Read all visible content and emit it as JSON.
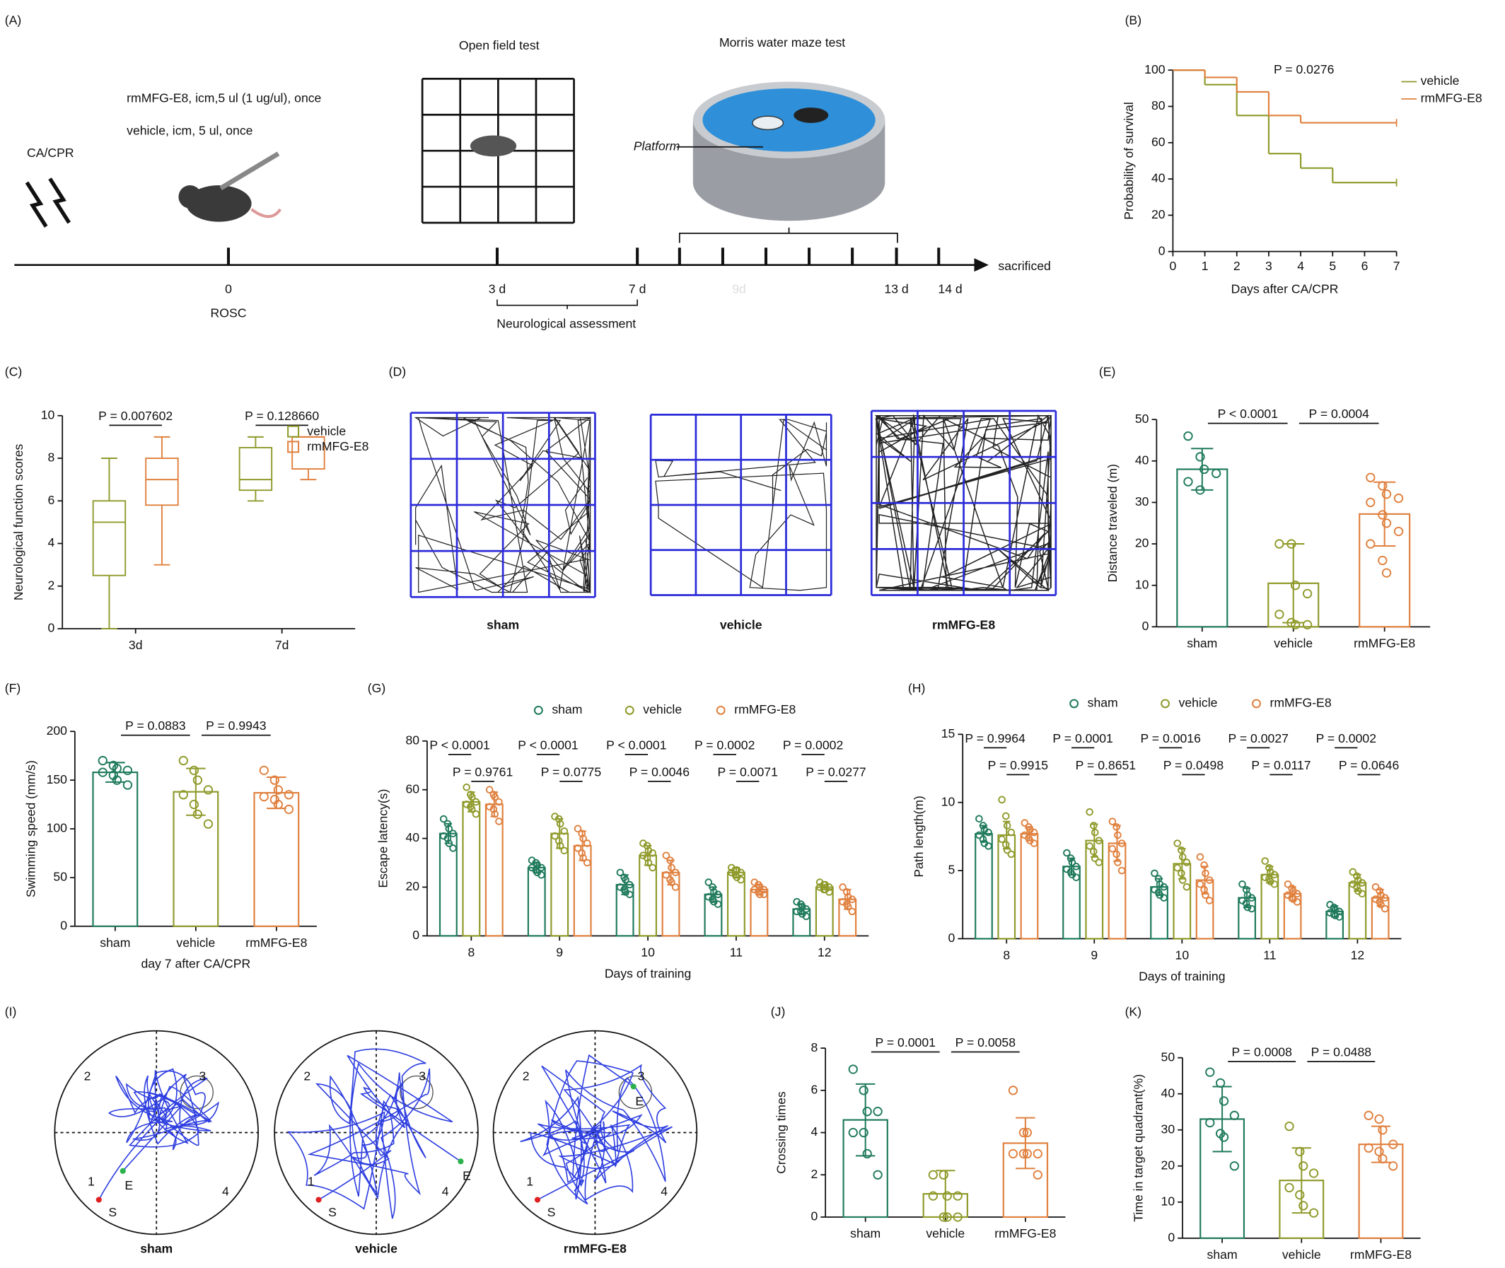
{
  "panel_labels": [
    "(A)",
    "(B)",
    "(C)",
    "(D)",
    "(E)",
    "(F)",
    "(G)",
    "(H)",
    "(I)",
    "(J)",
    "(K)"
  ],
  "schematic": {
    "event": "CA/CPR",
    "treatment": "rmMFG-E8, icm,5 ul (1 ug/ul), once",
    "control": "vehicle, icm, 5 ul, once",
    "open_field": "Open field test",
    "water_maze": "Morris water maze test",
    "platform": "Platform",
    "timeline": {
      "ticks": [
        "0",
        "3 d",
        "7 d",
        "9d",
        "13 d",
        "14 d"
      ],
      "end": "sacrificed",
      "start_note": "ROSC",
      "assessment": "Neurological assessment"
    }
  },
  "open_field_tracks": {
    "labels": [
      "sham",
      "vehicle",
      "rmMFG-E8"
    ]
  },
  "water_maze_tracks": {
    "labels": [
      "sham",
      "vehicle",
      "rmMFG-E8"
    ],
    "quadrants": [
      "1",
      "2",
      "3",
      "4"
    ],
    "start": "S",
    "end": "E"
  },
  "chart_data": [
    {
      "type": "line",
      "step": true,
      "xlabel": "Days after CA/CPR",
      "ylabel": "Probability of survival",
      "annotation": "P = 0.0276",
      "x": [
        0,
        1,
        2,
        3,
        4,
        5,
        6,
        7
      ],
      "xlim": [
        0,
        7
      ],
      "xticks": [
        0,
        1,
        2,
        3,
        4,
        5,
        6,
        7
      ],
      "ylim": [
        0,
        100
      ],
      "yticks": [
        0,
        20,
        40,
        60,
        80,
        100
      ],
      "legend": "right",
      "series": [
        {
          "name": "vehicle",
          "color": "#8f9a2a",
          "values": [
            100,
            92,
            75,
            54,
            46,
            38,
            38,
            38
          ]
        },
        {
          "name": "rmMFG-E8",
          "color": "#e0803e",
          "values": [
            100,
            96,
            88,
            75,
            71,
            71,
            71,
            71
          ]
        }
      ]
    },
    {
      "type": "box",
      "ylabel": "Neurological function scores",
      "categories": [
        "3d",
        "7d"
      ],
      "ylim": [
        0,
        10
      ],
      "yticks": [
        0,
        2,
        4,
        6,
        8,
        10
      ],
      "legend": "top-right",
      "comparisons": [
        "P = 0.007602",
        "P = 0.128660"
      ],
      "series": [
        {
          "name": "vehicle",
          "color": "#8f9a2a",
          "min": [
            0,
            6
          ],
          "q1": [
            2.5,
            6.5
          ],
          "median": [
            5,
            7
          ],
          "q3": [
            6,
            8.5
          ],
          "max": [
            8,
            9
          ]
        },
        {
          "name": "rmMFG-E8",
          "color": "#e0803e",
          "min": [
            3,
            7
          ],
          "q1": [
            5.8,
            7.5
          ],
          "median": [
            7,
            9
          ],
          "q3": [
            8,
            9
          ],
          "max": [
            9,
            9
          ]
        }
      ]
    },
    {
      "type": "bar",
      "ylabel": "Distance traveled (m)",
      "categories": [
        "sham",
        "vehicle",
        "rmMFG-E8"
      ],
      "colors": [
        "#1f7a5c",
        "#8f9a2a",
        "#e0803e"
      ],
      "ylim": [
        0,
        50
      ],
      "yticks": [
        0,
        10,
        20,
        30,
        40,
        50
      ],
      "values": [
        38,
        10.5,
        27.2
      ],
      "errors": [
        5,
        9.5,
        7.7
      ],
      "points": [
        [
          46,
          41,
          38,
          37,
          35,
          33
        ],
        [
          20,
          20,
          10,
          8,
          3,
          1,
          0.5,
          0.5
        ],
        [
          36,
          34,
          32,
          31,
          30,
          27,
          25,
          23,
          20,
          16,
          13
        ]
      ],
      "comparisons": [
        "P < 0.0001",
        "P = 0.0004"
      ]
    },
    {
      "type": "bar",
      "ylabel": "Swimming speed (mm/s)",
      "xlabel": "day 7 after CA/CPR",
      "categories": [
        "sham",
        "vehicle",
        "rmMFG-E8"
      ],
      "colors": [
        "#1f7a5c",
        "#8f9a2a",
        "#e0803e"
      ],
      "ylim": [
        0,
        200
      ],
      "yticks": [
        0,
        50,
        100,
        150,
        200
      ],
      "values": [
        158,
        138,
        137
      ],
      "errors": [
        10,
        24,
        16
      ],
      "points": [
        [
          170,
          165,
          162,
          160,
          158,
          155,
          150,
          145
        ],
        [
          170,
          160,
          150,
          140,
          135,
          125,
          115,
          105
        ],
        [
          160,
          150,
          140,
          135,
          133,
          130,
          125,
          120
        ]
      ],
      "comparisons": [
        "P = 0.0883",
        "P = 0.9943"
      ]
    },
    {
      "type": "bar",
      "ylabel": "Escape latency(s)",
      "xlabel": "Days of training",
      "categories": [
        "8",
        "9",
        "10",
        "11",
        "12"
      ],
      "ylim": [
        0,
        80
      ],
      "yticks": [
        0,
        20,
        40,
        60,
        80
      ],
      "legend": "top",
      "comparisons": [
        [
          "P < 0.0001",
          "P = 0.9761"
        ],
        [
          "P < 0.0001",
          "P = 0.0775"
        ],
        [
          "P < 0.0001",
          "P = 0.0046"
        ],
        [
          "P = 0.0002",
          "P = 0.0071"
        ],
        [
          "P = 0.0002",
          "P = 0.0277"
        ]
      ],
      "series": [
        {
          "name": "sham",
          "color": "#1f7a5c",
          "values": [
            42,
            28,
            21,
            17,
            11
          ],
          "errors": [
            4,
            2,
            4,
            3,
            2
          ],
          "points": [
            [
              48,
              46,
              44,
              42,
              41,
              40,
              38,
              36
            ],
            [
              31,
              30,
              29,
              28,
              28,
              27,
              26,
              25
            ],
            [
              26,
              24,
              23,
              21,
              20,
              19,
              18,
              17
            ],
            [
              22,
              20,
              18,
              17,
              16,
              15,
              14,
              13
            ],
            [
              14,
              13,
              12,
              11,
              10,
              10,
              9,
              8
            ]
          ]
        },
        {
          "name": "vehicle",
          "color": "#8f9a2a",
          "values": [
            55,
            42,
            33,
            26,
            20
          ],
          "errors": [
            4,
            6,
            4,
            2,
            1
          ],
          "points": [
            [
              61,
              58,
              57,
              55,
              54,
              53,
              52,
              50
            ],
            [
              49,
              48,
              46,
              43,
              41,
              39,
              37,
              35
            ],
            [
              38,
              37,
              35,
              34,
              33,
              32,
              30,
              28
            ],
            [
              28,
              27,
              27,
              26,
              26,
              25,
              24,
              23
            ],
            [
              22,
              21,
              21,
              20,
              20,
              19,
              19,
              18
            ]
          ]
        },
        {
          "name": "rmMFG-E8",
          "color": "#e0803e",
          "values": [
            54,
            37,
            26,
            19,
            15
          ],
          "errors": [
            5,
            6,
            5,
            2,
            4
          ],
          "points": [
            [
              60,
              58,
              57,
              55,
              53,
              52,
              50,
              47
            ],
            [
              44,
              42,
              40,
              38,
              36,
              34,
              32,
              30
            ],
            [
              33,
              31,
              28,
              26,
              25,
              23,
              22,
              20
            ],
            [
              22,
              21,
              20,
              19,
              19,
              18,
              17,
              17
            ],
            [
              20,
              18,
              16,
              15,
              14,
              13,
              12,
              10
            ]
          ]
        }
      ]
    },
    {
      "type": "bar",
      "ylabel": "Path length(m)",
      "xlabel": "Days of training",
      "categories": [
        "8",
        "9",
        "10",
        "11",
        "12"
      ],
      "ylim": [
        0,
        15
      ],
      "yticks": [
        0,
        5,
        10,
        15
      ],
      "legend": "top",
      "comparisons": [
        [
          "P = 0.9964",
          "P = 0.9915"
        ],
        [
          "P = 0.0001",
          "P = 0.8651"
        ],
        [
          "P = 0.0016",
          "P = 0.0498"
        ],
        [
          "P = 0.0027",
          "P = 0.0117"
        ],
        [
          "P = 0.0002",
          "P = 0.0646"
        ]
      ],
      "series": [
        {
          "name": "sham",
          "color": "#1f7a5c",
          "values": [
            7.7,
            5.3,
            3.8,
            3.0,
            2.0
          ],
          "errors": [
            0.6,
            0.6,
            0.6,
            0.7,
            0.4
          ],
          "points": [
            [
              8.8,
              8.3,
              8.0,
              7.8,
              7.6,
              7.3,
              7.0,
              6.8
            ],
            [
              6.3,
              5.9,
              5.6,
              5.3,
              5.1,
              4.9,
              4.7,
              4.5
            ],
            [
              4.8,
              4.4,
              4.0,
              3.8,
              3.6,
              3.4,
              3.2,
              3.0
            ],
            [
              4.0,
              3.6,
              3.2,
              3.0,
              2.8,
              2.6,
              2.3,
              2.2
            ],
            [
              2.5,
              2.3,
              2.1,
              2.0,
              1.9,
              1.8,
              1.7,
              1.6
            ]
          ]
        },
        {
          "name": "vehicle",
          "color": "#8f9a2a",
          "values": [
            7.6,
            7.2,
            5.5,
            4.7,
            4.1
          ],
          "errors": [
            1.0,
            1.2,
            1.1,
            0.6,
            0.6
          ],
          "points": [
            [
              10.2,
              9.0,
              8.3,
              7.8,
              7.3,
              6.9,
              6.5,
              6.2
            ],
            [
              9.3,
              8.3,
              7.8,
              7.2,
              6.8,
              6.4,
              5.9,
              5.6
            ],
            [
              7.0,
              6.5,
              6.0,
              5.6,
              5.2,
              4.8,
              4.3,
              3.8
            ],
            [
              5.7,
              5.2,
              4.9,
              4.7,
              4.5,
              4.4,
              4.2,
              4.0
            ],
            [
              4.9,
              4.6,
              4.3,
              4.1,
              4.0,
              3.8,
              3.5,
              3.3
            ]
          ]
        },
        {
          "name": "rmMFG-E8",
          "color": "#e0803e",
          "values": [
            7.7,
            7.0,
            4.3,
            3.3,
            3.0
          ],
          "errors": [
            0.5,
            1.3,
            1.0,
            0.5,
            0.6
          ],
          "points": [
            [
              8.5,
              8.2,
              8.0,
              7.8,
              7.6,
              7.4,
              7.2,
              7.0
            ],
            [
              8.6,
              8.2,
              7.6,
              7.0,
              6.6,
              6.2,
              5.6,
              5.0
            ],
            [
              6.0,
              5.4,
              4.8,
              4.3,
              4.0,
              3.6,
              3.2,
              2.8
            ],
            [
              4.0,
              3.7,
              3.5,
              3.3,
              3.2,
              3.0,
              2.9,
              2.7
            ],
            [
              3.8,
              3.5,
              3.2,
              3.0,
              2.9,
              2.7,
              2.5,
              2.2
            ]
          ]
        }
      ]
    },
    {
      "type": "bar",
      "ylabel": "Crossing times",
      "categories": [
        "sham",
        "vehicle",
        "rmMFG-E8"
      ],
      "colors": [
        "#1f7a5c",
        "#8f9a2a",
        "#e0803e"
      ],
      "ylim": [
        0,
        8
      ],
      "yticks": [
        0,
        2,
        4,
        6,
        8
      ],
      "values": [
        4.6,
        1.1,
        3.5
      ],
      "errors": [
        1.7,
        1.1,
        1.2
      ],
      "points": [
        [
          7,
          6,
          5,
          5,
          4,
          4,
          3,
          2
        ],
        [
          2,
          2,
          1,
          1,
          1,
          0,
          0,
          0
        ],
        [
          6,
          4,
          4,
          3,
          3,
          3,
          3,
          2
        ]
      ],
      "comparisons": [
        "P = 0.0001",
        "P = 0.0058"
      ]
    },
    {
      "type": "bar",
      "ylabel": "Time in target quadrant(%)",
      "categories": [
        "sham",
        "vehicle",
        "rmMFG-E8"
      ],
      "colors": [
        "#1f7a5c",
        "#8f9a2a",
        "#e0803e"
      ],
      "ylim": [
        0,
        50
      ],
      "yticks": [
        0,
        10,
        20,
        30,
        40,
        50
      ],
      "values": [
        33,
        16,
        26
      ],
      "errors": [
        9,
        9,
        5
      ],
      "points": [
        [
          46,
          43,
          38,
          34,
          32,
          29,
          28,
          20
        ],
        [
          31,
          24,
          20,
          18,
          14,
          12,
          9,
          7
        ],
        [
          34,
          33,
          30,
          26,
          25,
          24,
          22,
          20
        ]
      ],
      "comparisons": [
        "P = 0.0008",
        "P = 0.0488"
      ]
    }
  ]
}
